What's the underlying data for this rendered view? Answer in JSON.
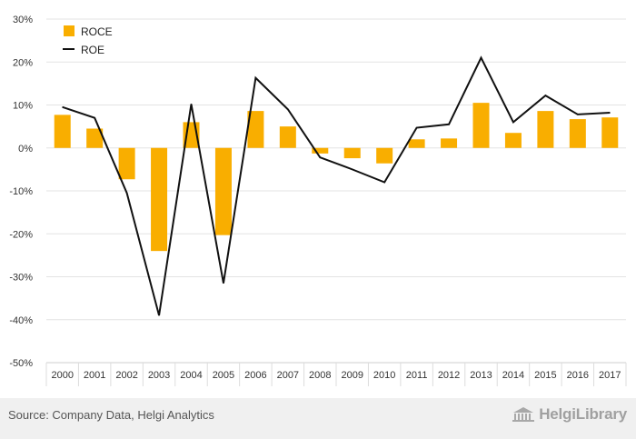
{
  "chart_data": {
    "type": "bar",
    "categories": [
      "2000",
      "2001",
      "2002",
      "2003",
      "2004",
      "2005",
      "2006",
      "2007",
      "2008",
      "2009",
      "2010",
      "2011",
      "2012",
      "2013",
      "2014",
      "2015",
      "2016",
      "2017"
    ],
    "series": [
      {
        "name": "ROCE",
        "type": "bar",
        "color": "#f9ae00",
        "values": [
          7.7,
          4.5,
          -7.3,
          -24.0,
          6.0,
          -20.3,
          8.6,
          5.0,
          -1.3,
          -2.4,
          -3.6,
          2.0,
          2.2,
          10.5,
          3.5,
          8.6,
          6.7,
          7.1
        ]
      },
      {
        "name": "ROE",
        "type": "line",
        "color": "#111111",
        "values": [
          9.5,
          7.0,
          -10.5,
          -39.0,
          10.2,
          -31.5,
          16.3,
          9.0,
          -2.2,
          -5.0,
          -8.0,
          4.7,
          5.5,
          21.0,
          6.0,
          12.2,
          7.8,
          8.2
        ]
      }
    ],
    "ylim": [
      -50,
      30
    ],
    "yticks": [
      30,
      20,
      10,
      0,
      -10,
      -20,
      -30,
      -40,
      -50
    ],
    "ytick_labels": [
      "30%",
      "20%",
      "10%",
      "0%",
      "-10%",
      "-20%",
      "-30%",
      "-40%",
      "-50%"
    ],
    "grid": true,
    "legend": "top-left"
  },
  "legend": {
    "items": [
      {
        "label": "ROCE",
        "icon": "square"
      },
      {
        "label": "ROE",
        "icon": "line"
      }
    ]
  },
  "footer": {
    "source": "Source: Company Data, Helgi Analytics",
    "brand": "HelgiLibrary"
  }
}
